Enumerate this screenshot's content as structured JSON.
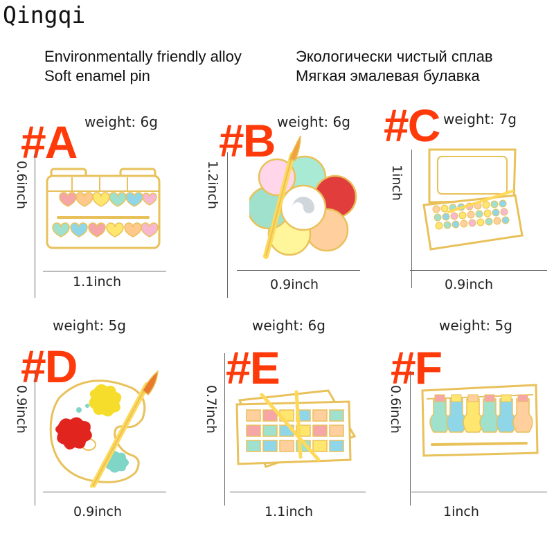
{
  "brand": "Qingqi",
  "headline_en": [
    "Environmentally friendly alloy",
    "Soft enamel pin"
  ],
  "headline_ru": [
    "Экологически чистый сплав",
    "Мягкая эмалевая булавка"
  ],
  "colors": {
    "tag": "#ff3a0a",
    "gold": "#e8c15a",
    "enamel": "#ffffff"
  },
  "products": [
    {
      "tag": "#A",
      "weight": "weight: 6g",
      "height": "0.6inch",
      "width": "1.1inch",
      "icon": "heart-watercolor-box-pin-icon"
    },
    {
      "tag": "#B",
      "weight": "weight: 6g",
      "height": "1.2inch",
      "width": "0.9inch",
      "icon": "flower-palette-pin-icon"
    },
    {
      "tag": "#C",
      "weight": "weight: 7g",
      "height": "1inch",
      "width": "0.9inch",
      "icon": "open-paint-case-pin-icon"
    },
    {
      "tag": "#D",
      "weight": "weight: 5g",
      "height": "0.9inch",
      "width": "0.9inch",
      "icon": "artist-palette-pin-icon"
    },
    {
      "tag": "#E",
      "weight": "weight: 6g",
      "height": "0.7inch",
      "width": "1.1inch",
      "icon": "paint-tray-pin-icon"
    },
    {
      "tag": "#F",
      "weight": "weight: 5g",
      "height": "0.6inch",
      "width": "1inch",
      "icon": "paint-tubes-box-pin-icon"
    }
  ]
}
